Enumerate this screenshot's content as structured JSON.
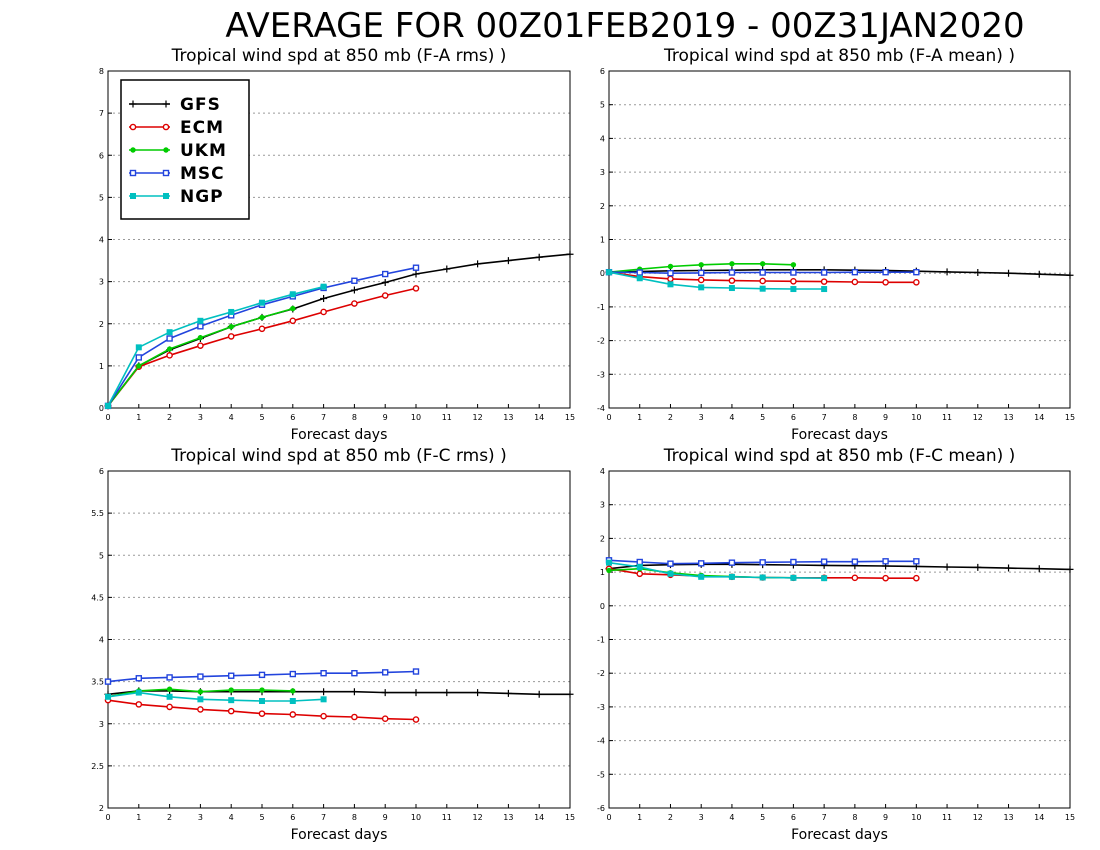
{
  "title": "AVERAGE FOR 00Z01FEB2019 - 00Z31JAN2020",
  "legend": [
    {
      "name": "GFS",
      "color": "#000000",
      "marker": "plus"
    },
    {
      "name": "ECM",
      "color": "#dd0000",
      "marker": "circle-open"
    },
    {
      "name": "UKM",
      "color": "#00cc00",
      "marker": "circle-filled"
    },
    {
      "name": "MSC",
      "color": "#2244dd",
      "marker": "square-open"
    },
    {
      "name": "NGP",
      "color": "#00c0c0",
      "marker": "square-filled"
    }
  ],
  "chart_data": [
    {
      "type": "line",
      "title": "Tropical wind spd at 850 mb (F-A rms) )",
      "xlabel": "Forecast days",
      "ylabel": "",
      "xlim": [
        0,
        15
      ],
      "ylim": [
        0,
        8
      ],
      "xticks": [
        "0",
        "1",
        "2",
        "3",
        "4",
        "5",
        "6",
        "7",
        "8",
        "9",
        "10",
        "11",
        "12",
        "13",
        "14",
        "15"
      ],
      "yticks": [
        "0",
        "1",
        "2",
        "3",
        "4",
        "5",
        "6",
        "7",
        "8"
      ],
      "grid": true,
      "legend_position": "top-left",
      "series": [
        {
          "name": "GFS",
          "x": [
            0,
            1,
            2,
            3,
            4,
            5,
            6,
            7,
            8,
            9,
            10,
            11,
            12,
            13,
            14,
            15
          ],
          "values": [
            0.05,
            1.0,
            1.38,
            1.65,
            1.93,
            2.15,
            2.35,
            2.6,
            2.8,
            2.98,
            3.18,
            3.3,
            3.42,
            3.5,
            3.58,
            3.65
          ]
        },
        {
          "name": "ECM",
          "x": [
            0,
            1,
            2,
            3,
            4,
            5,
            6,
            7,
            8,
            9,
            10
          ],
          "values": [
            0.05,
            0.98,
            1.25,
            1.48,
            1.7,
            1.88,
            2.07,
            2.28,
            2.48,
            2.67,
            2.84
          ]
        },
        {
          "name": "UKM",
          "x": [
            0,
            1,
            2,
            3,
            4,
            5,
            6
          ],
          "values": [
            0.05,
            1.0,
            1.4,
            1.67,
            1.93,
            2.15,
            2.36
          ]
        },
        {
          "name": "MSC",
          "x": [
            0,
            1,
            2,
            3,
            4,
            5,
            6,
            7,
            8,
            9,
            10
          ],
          "values": [
            0.05,
            1.2,
            1.65,
            1.94,
            2.2,
            2.45,
            2.65,
            2.85,
            3.02,
            3.18,
            3.33
          ]
        },
        {
          "name": "NGP",
          "x": [
            0,
            1,
            2,
            3,
            4,
            5,
            6,
            7
          ],
          "values": [
            0.05,
            1.44,
            1.8,
            2.07,
            2.28,
            2.5,
            2.7,
            2.88
          ]
        }
      ]
    },
    {
      "type": "line",
      "title": "Tropical wind spd at 850 mb (F-A mean) )",
      "xlabel": "Forecast days",
      "ylabel": "",
      "xlim": [
        0,
        15
      ],
      "ylim": [
        -4,
        6
      ],
      "xticks": [
        "0",
        "1",
        "2",
        "3",
        "4",
        "5",
        "6",
        "7",
        "8",
        "9",
        "10",
        "11",
        "12",
        "13",
        "14",
        "15"
      ],
      "yticks": [
        "-4",
        "-3",
        "-2",
        "-1",
        "0",
        "1",
        "2",
        "3",
        "4",
        "5",
        "6"
      ],
      "grid": true,
      "series": [
        {
          "name": "GFS",
          "x": [
            0,
            1,
            2,
            3,
            4,
            5,
            6,
            7,
            8,
            9,
            10,
            11,
            12,
            13,
            14,
            15
          ],
          "values": [
            0.03,
            0.05,
            0.07,
            0.08,
            0.09,
            0.1,
            0.1,
            0.1,
            0.09,
            0.08,
            0.06,
            0.04,
            0.02,
            0.0,
            -0.03,
            -0.06
          ]
        },
        {
          "name": "ECM",
          "x": [
            0,
            1,
            2,
            3,
            4,
            5,
            6,
            7,
            8,
            9,
            10
          ],
          "values": [
            0.03,
            -0.1,
            -0.17,
            -0.2,
            -0.22,
            -0.23,
            -0.24,
            -0.25,
            -0.26,
            -0.27,
            -0.27
          ]
        },
        {
          "name": "UKM",
          "x": [
            0,
            1,
            2,
            3,
            4,
            5,
            6
          ],
          "values": [
            0.03,
            0.12,
            0.2,
            0.25,
            0.28,
            0.28,
            0.25
          ]
        },
        {
          "name": "MSC",
          "x": [
            0,
            1,
            2,
            3,
            4,
            5,
            6,
            7,
            8,
            9,
            10
          ],
          "values": [
            0.03,
            0.02,
            0.0,
            0.01,
            0.02,
            0.02,
            0.02,
            0.02,
            0.03,
            0.03,
            0.03
          ]
        },
        {
          "name": "NGP",
          "x": [
            0,
            1,
            2,
            3,
            4,
            5,
            6,
            7
          ],
          "values": [
            0.03,
            -0.15,
            -0.33,
            -0.42,
            -0.44,
            -0.46,
            -0.47,
            -0.47
          ]
        }
      ]
    },
    {
      "type": "line",
      "title": "Tropical wind spd at 850 mb (F-C rms) )",
      "xlabel": "Forecast days",
      "ylabel": "",
      "xlim": [
        0,
        15
      ],
      "ylim": [
        2,
        6
      ],
      "xticks": [
        "0",
        "1",
        "2",
        "3",
        "4",
        "5",
        "6",
        "7",
        "8",
        "9",
        "10",
        "11",
        "12",
        "13",
        "14",
        "15"
      ],
      "yticks": [
        "2",
        "2.5",
        "3",
        "3.5",
        "4",
        "4.5",
        "5",
        "5.5",
        "6"
      ],
      "grid": true,
      "series": [
        {
          "name": "GFS",
          "x": [
            0,
            1,
            2,
            3,
            4,
            5,
            6,
            7,
            8,
            9,
            10,
            11,
            12,
            13,
            14,
            15
          ],
          "values": [
            3.35,
            3.39,
            3.39,
            3.38,
            3.38,
            3.38,
            3.38,
            3.38,
            3.38,
            3.37,
            3.37,
            3.37,
            3.37,
            3.36,
            3.35,
            3.35
          ]
        },
        {
          "name": "ECM",
          "x": [
            0,
            1,
            2,
            3,
            4,
            5,
            6,
            7,
            8,
            9,
            10
          ],
          "values": [
            3.28,
            3.23,
            3.2,
            3.17,
            3.15,
            3.12,
            3.11,
            3.09,
            3.08,
            3.06,
            3.05
          ]
        },
        {
          "name": "UKM",
          "x": [
            0,
            1,
            2,
            3,
            4,
            5,
            6
          ],
          "values": [
            3.32,
            3.39,
            3.41,
            3.38,
            3.4,
            3.4,
            3.39
          ]
        },
        {
          "name": "MSC",
          "x": [
            0,
            1,
            2,
            3,
            4,
            5,
            6,
            7,
            8,
            9,
            10
          ],
          "values": [
            3.5,
            3.54,
            3.55,
            3.56,
            3.57,
            3.58,
            3.59,
            3.6,
            3.6,
            3.61,
            3.62
          ]
        },
        {
          "name": "NGP",
          "x": [
            0,
            1,
            2,
            3,
            4,
            5,
            6,
            7
          ],
          "values": [
            3.32,
            3.37,
            3.32,
            3.29,
            3.28,
            3.27,
            3.27,
            3.29
          ]
        }
      ]
    },
    {
      "type": "line",
      "title": "Tropical wind spd at 850 mb (F-C mean) )",
      "xlabel": "Forecast days",
      "ylabel": "",
      "xlim": [
        0,
        15
      ],
      "ylim": [
        -6,
        4
      ],
      "xticks": [
        "0",
        "1",
        "2",
        "3",
        "4",
        "5",
        "6",
        "7",
        "8",
        "9",
        "10",
        "11",
        "12",
        "13",
        "14",
        "15"
      ],
      "yticks": [
        "-6",
        "-5",
        "-4",
        "-3",
        "-2",
        "-1",
        "0",
        "1",
        "2",
        "3",
        "4"
      ],
      "grid": true,
      "series": [
        {
          "name": "GFS",
          "x": [
            0,
            1,
            2,
            3,
            4,
            5,
            6,
            7,
            8,
            9,
            10,
            11,
            12,
            13,
            14,
            15
          ],
          "values": [
            1.1,
            1.2,
            1.22,
            1.23,
            1.23,
            1.22,
            1.21,
            1.2,
            1.19,
            1.18,
            1.17,
            1.15,
            1.14,
            1.12,
            1.1,
            1.08
          ]
        },
        {
          "name": "ECM",
          "x": [
            0,
            1,
            2,
            3,
            4,
            5,
            6,
            7,
            8,
            9,
            10
          ],
          "values": [
            1.1,
            0.95,
            0.92,
            0.88,
            0.86,
            0.84,
            0.83,
            0.83,
            0.83,
            0.82,
            0.82
          ]
        },
        {
          "name": "UKM",
          "x": [
            0,
            1,
            2,
            3,
            4,
            5,
            6
          ],
          "values": [
            1.05,
            1.1,
            0.98,
            0.9,
            0.87,
            0.84,
            0.83
          ]
        },
        {
          "name": "MSC",
          "x": [
            0,
            1,
            2,
            3,
            4,
            5,
            6,
            7,
            8,
            9,
            10
          ],
          "values": [
            1.35,
            1.3,
            1.25,
            1.26,
            1.28,
            1.29,
            1.3,
            1.31,
            1.31,
            1.32,
            1.32
          ]
        },
        {
          "name": "NGP",
          "x": [
            0,
            1,
            2,
            3,
            4,
            5,
            6,
            7
          ],
          "values": [
            1.28,
            1.15,
            0.95,
            0.86,
            0.86,
            0.84,
            0.83,
            0.82
          ]
        }
      ]
    }
  ]
}
